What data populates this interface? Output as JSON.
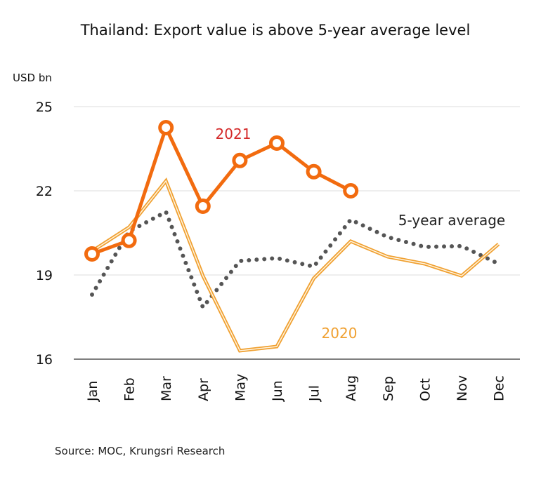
{
  "chart_data": {
    "type": "line",
    "title": "Thailand: Export value is above 5-year average level",
    "ylabel": "USD bn",
    "xlabel": "",
    "ylim": [
      16,
      25
    ],
    "yticks": [
      16,
      19,
      22,
      25
    ],
    "grid": true,
    "categories": [
      "Jan",
      "Feb",
      "Mar",
      "Apr",
      "May",
      "Jun",
      "Jul",
      "Aug",
      "Sep",
      "Oct",
      "Nov",
      "Dec"
    ],
    "series": [
      {
        "name": "2021",
        "color": "#f26b0f",
        "style": "solid-markers",
        "values": [
          19.75,
          20.23,
          24.25,
          21.45,
          23.08,
          23.7,
          22.68,
          22.0,
          null,
          null,
          null,
          null
        ]
      },
      {
        "name": "2020",
        "color": "#f0a030",
        "style": "double",
        "values": [
          19.85,
          20.7,
          22.35,
          18.97,
          16.3,
          16.45,
          18.88,
          20.2,
          19.65,
          19.4,
          18.97,
          20.1
        ]
      },
      {
        "name": "5-year average",
        "color": "#555555",
        "style": "dotted",
        "values": [
          18.3,
          20.55,
          21.25,
          17.85,
          19.5,
          19.6,
          19.3,
          20.97,
          20.35,
          20.0,
          20.03,
          19.4
        ]
      }
    ],
    "label_colors": {
      "2021": "#d42a2a",
      "2020": "#f0a030",
      "5-year average": "#222222"
    },
    "source": "Source: MOC, Krungsri Research"
  }
}
